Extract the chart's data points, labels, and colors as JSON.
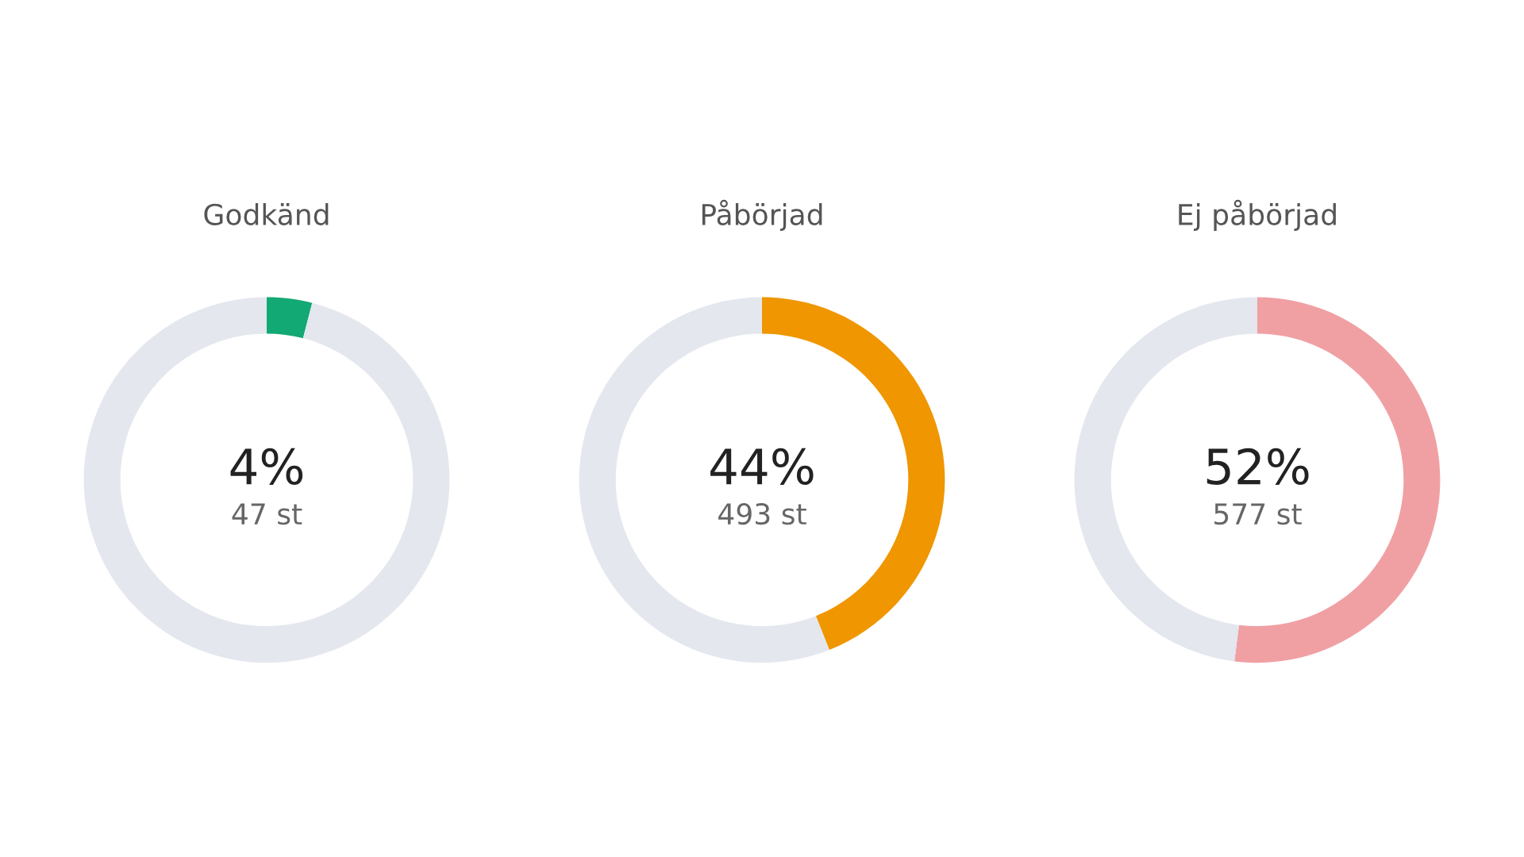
{
  "chart_data": [
    {
      "type": "donut",
      "title": "Godkänd",
      "categories": [
        null,
        null
      ],
      "values": [
        4,
        96
      ],
      "colors": [
        "#13a974",
        "#e4e7ee"
      ],
      "annotations": [
        "4%",
        "47 st"
      ]
    },
    {
      "type": "donut",
      "title": "Påbörjad",
      "categories": [
        null,
        null
      ],
      "values": [
        44,
        56
      ],
      "colors": [
        "#ef9600",
        "#e4e7ee"
      ],
      "annotations": [
        "44%",
        "493 st"
      ]
    },
    {
      "type": "donut",
      "title": "Ej påbörjad",
      "categories": [
        null,
        null
      ],
      "values": [
        52,
        48
      ],
      "colors": [
        "#f0a0a3",
        "#e4e7ee"
      ],
      "annotations": [
        "52%",
        "577 st"
      ]
    }
  ]
}
